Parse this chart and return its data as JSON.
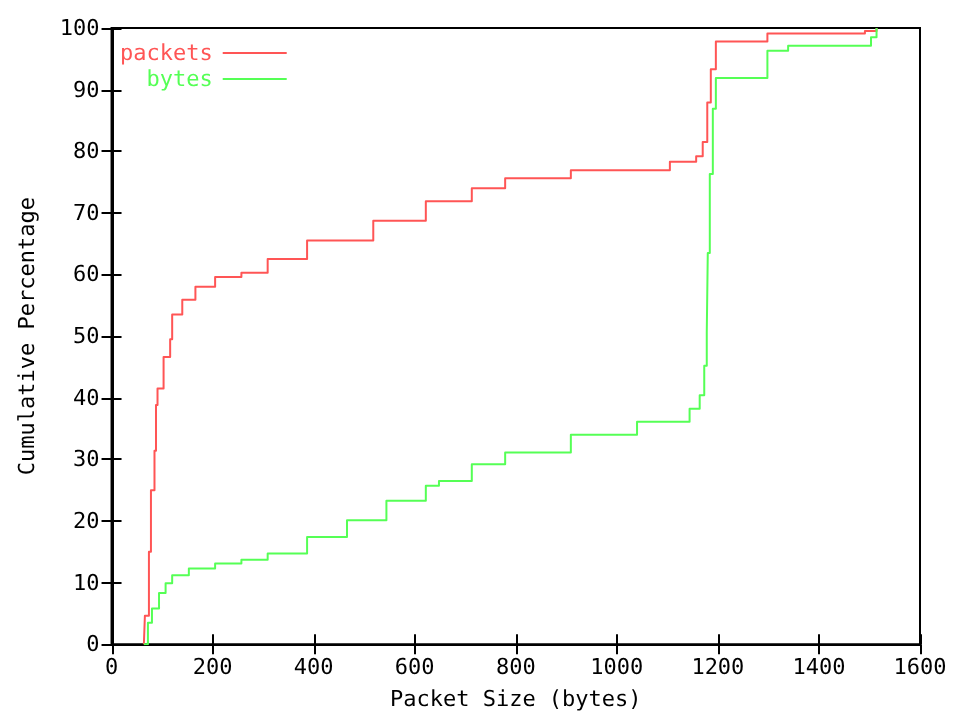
{
  "chart_data": {
    "type": "step",
    "xlabel": "Packet Size (bytes)",
    "ylabel": "Cumulative Percentage",
    "xlim": [
      0,
      1600
    ],
    "xticks": [
      0,
      200,
      400,
      600,
      800,
      1000,
      1200,
      1400,
      1600
    ],
    "ylim": [
      0,
      100
    ],
    "yticks": [
      0,
      10,
      20,
      30,
      40,
      50,
      60,
      70,
      80,
      90,
      100
    ],
    "grid": false,
    "legend": "top left",
    "line_style": "solid",
    "marker": "none",
    "series": [
      {
        "name": "packets",
        "color": "#ff5555",
        "x": [
          64,
          66,
          74,
          78,
          85,
          88,
          91,
          103,
          116,
          120,
          140,
          166,
          205,
          257,
          309,
          387,
          518,
          622,
          713,
          779,
          909,
          1105,
          1157,
          1170,
          1179,
          1186,
          1196,
          1298,
          1491,
          1514
        ],
        "values": [
          0,
          4.6,
          15,
          25,
          31.4,
          38.8,
          41.5,
          46.6,
          49.5,
          53.5,
          55.9,
          58,
          59.6,
          60.3,
          62.5,
          65.5,
          68.7,
          71.9,
          74,
          75.6,
          76.9,
          78.3,
          79.2,
          81.5,
          87.9,
          93.3,
          97.8,
          99.1,
          99.5,
          100
        ]
      },
      {
        "name": "bytes",
        "color": "#55ff55",
        "x": [
          64,
          72,
          80,
          94,
          107,
          120,
          153,
          205,
          257,
          309,
          387,
          466,
          544,
          622,
          648,
          713,
          779,
          909,
          1040,
          1144,
          1164,
          1173,
          1178,
          1180,
          1184,
          1190,
          1196,
          1298,
          1339,
          1503,
          1514
        ],
        "values": [
          0,
          3.5,
          5.8,
          8.3,
          9.9,
          11.2,
          12.3,
          13.1,
          13.7,
          14.7,
          17.4,
          20.1,
          23.3,
          25.7,
          26.5,
          29.2,
          31.1,
          34,
          36.1,
          38.2,
          40.4,
          45.2,
          50.6,
          63.5,
          76.3,
          86.9,
          91.9,
          96.3,
          97.1,
          98.5,
          100
        ]
      }
    ]
  }
}
